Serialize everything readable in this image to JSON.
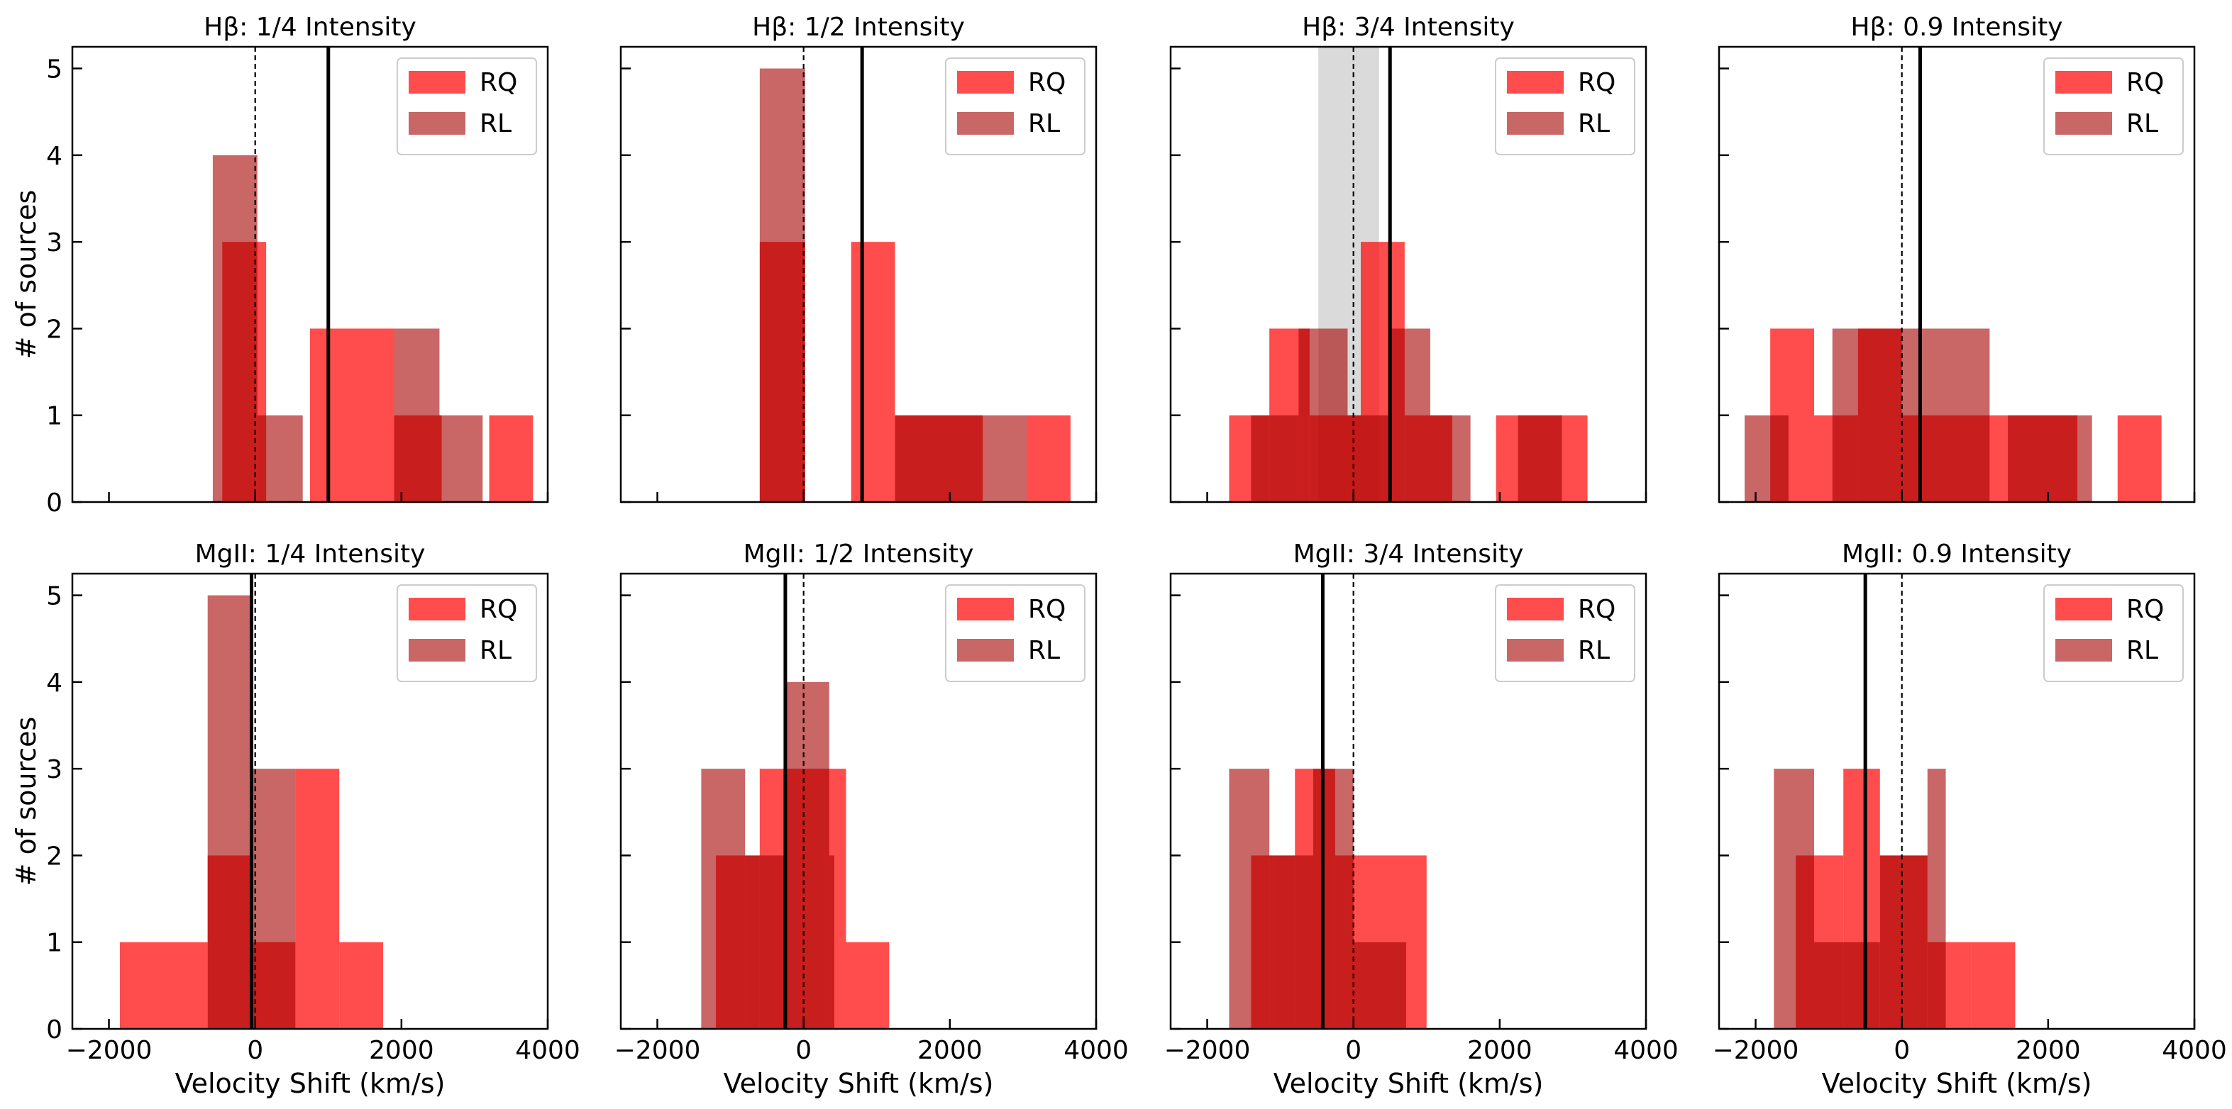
{
  "chart_data": [
    {
      "type": "histogram",
      "title": "Hβ: 1/4 Intensity",
      "xlabel": "",
      "ylabel": "#  of sources",
      "xlim": [
        -2500,
        4000
      ],
      "ylim": [
        0,
        5.25
      ],
      "xticks": [
        -2000,
        0,
        2000,
        4000
      ],
      "yticks": [
        0,
        1,
        2,
        3,
        4,
        5
      ],
      "legend": {
        "position": "top-right",
        "entries": [
          "RQ",
          "RL"
        ]
      },
      "series": [
        {
          "name": "RQ",
          "color": "#ff0000",
          "bars": [
            [
              -450,
              150,
              3
            ],
            [
              150,
              750,
              0
            ],
            [
              750,
              1900,
              2
            ],
            [
              1900,
              2550,
              1
            ],
            [
              3200,
              3800,
              1
            ]
          ]
        },
        {
          "name": "RL",
          "color": "#a50000",
          "bars": [
            [
              -580,
              30,
              4
            ],
            [
              30,
              650,
              1
            ],
            [
              1900,
              2520,
              2
            ],
            [
              2520,
              3110,
              1
            ]
          ]
        }
      ],
      "vlines": [
        {
          "x": 0,
          "style": "dashed"
        },
        {
          "x": 1000,
          "style": "solid"
        }
      ]
    },
    {
      "type": "histogram",
      "title": "Hβ: 1/2 Intensity",
      "xlabel": "",
      "ylabel": "",
      "xlim": [
        -2500,
        4000
      ],
      "ylim": [
        0,
        5.25
      ],
      "xticks": [
        -2000,
        0,
        2000,
        4000
      ],
      "yticks": [
        0,
        1,
        2,
        3,
        4,
        5
      ],
      "legend": {
        "position": "top-right",
        "entries": [
          "RQ",
          "RL"
        ]
      },
      "series": [
        {
          "name": "RQ",
          "color": "#ff0000",
          "bars": [
            [
              -600,
              20,
              3
            ],
            [
              650,
              1250,
              3
            ],
            [
              1250,
              2450,
              1
            ],
            [
              3050,
              3650,
              1
            ]
          ]
        },
        {
          "name": "RL",
          "color": "#a50000",
          "bars": [
            [
              -600,
              20,
              5
            ],
            [
              1250,
              2450,
              1
            ],
            [
              2450,
              3050,
              1
            ]
          ]
        }
      ],
      "vlines": [
        {
          "x": 0,
          "style": "dashed"
        },
        {
          "x": 800,
          "style": "solid"
        }
      ]
    },
    {
      "type": "histogram",
      "title": "Hβ: 3/4 Intensity",
      "xlabel": "",
      "ylabel": "",
      "xlim": [
        -2500,
        4000
      ],
      "ylim": [
        0,
        5.25
      ],
      "xticks": [
        -2000,
        0,
        2000,
        4000
      ],
      "yticks": [
        0,
        1,
        2,
        3,
        4,
        5
      ],
      "legend": {
        "position": "top-right",
        "entries": [
          "RQ",
          "RL"
        ]
      },
      "shaded_region": [
        -480,
        350
      ],
      "series": [
        {
          "name": "RQ",
          "color": "#ff0000",
          "bars": [
            [
              -1700,
              -1150,
              1
            ],
            [
              -1150,
              -600,
              2
            ],
            [
              -600,
              100,
              1
            ],
            [
              100,
              700,
              3
            ],
            [
              700,
              1350,
              1
            ],
            [
              1950,
              3200,
              1
            ]
          ]
        },
        {
          "name": "RL",
          "color": "#a50000",
          "bars": [
            [
              -1400,
              -750,
              1
            ],
            [
              -750,
              -80,
              2
            ],
            [
              -80,
              500,
              1
            ],
            [
              500,
              1050,
              2
            ],
            [
              1050,
              1600,
              1
            ],
            [
              2250,
              2850,
              1
            ]
          ]
        }
      ],
      "vlines": [
        {
          "x": 0,
          "style": "dashed"
        },
        {
          "x": 500,
          "style": "solid"
        }
      ]
    },
    {
      "type": "histogram",
      "title": "Hβ: 0.9 Intensity",
      "xlabel": "",
      "ylabel": "",
      "xlim": [
        -2500,
        4000
      ],
      "ylim": [
        0,
        5.25
      ],
      "xticks": [
        -2000,
        0,
        2000,
        4000
      ],
      "yticks": [
        0,
        1,
        2,
        3,
        4,
        5
      ],
      "legend": {
        "position": "top-right",
        "entries": [
          "RQ",
          "RL"
        ]
      },
      "series": [
        {
          "name": "RQ",
          "color": "#ff0000",
          "bars": [
            [
              -1800,
              -1200,
              2
            ],
            [
              -1200,
              -600,
              1
            ],
            [
              -600,
              0,
              2
            ],
            [
              0,
              1200,
              1
            ],
            [
              1200,
              2400,
              1
            ],
            [
              2950,
              3550,
              1
            ]
          ]
        },
        {
          "name": "RL",
          "color": "#a50000",
          "bars": [
            [
              -2150,
              -1550,
              1
            ],
            [
              -950,
              1200,
              2
            ],
            [
              1450,
              2600,
              1
            ]
          ]
        }
      ],
      "vlines": [
        {
          "x": 0,
          "style": "dashed"
        },
        {
          "x": 250,
          "style": "solid"
        }
      ]
    },
    {
      "type": "histogram",
      "title": "MgII: 1/4 Intensity",
      "xlabel": "Velocity Shift (km/s)",
      "ylabel": "#  of sources",
      "xlim": [
        -2500,
        4000
      ],
      "ylim": [
        0,
        5.25
      ],
      "xticks": [
        -2000,
        0,
        2000,
        4000
      ],
      "yticks": [
        0,
        1,
        2,
        3,
        4,
        5
      ],
      "legend": {
        "position": "top-right",
        "entries": [
          "RQ",
          "RL"
        ]
      },
      "series": [
        {
          "name": "RQ",
          "color": "#ff0000",
          "bars": [
            [
              -1850,
              -650,
              1
            ],
            [
              -650,
              -50,
              2
            ],
            [
              -50,
              550,
              1
            ],
            [
              550,
              1150,
              3
            ],
            [
              1150,
              1750,
              1
            ]
          ]
        },
        {
          "name": "RL",
          "color": "#a50000",
          "bars": [
            [
              -650,
              -50,
              5
            ],
            [
              -50,
              550,
              3
            ]
          ]
        }
      ],
      "vlines": [
        {
          "x": 0,
          "style": "dashed"
        },
        {
          "x": -50,
          "style": "solid"
        }
      ]
    },
    {
      "type": "histogram",
      "title": "MgII: 1/2 Intensity",
      "xlabel": "Velocity Shift (km/s)",
      "ylabel": "",
      "xlim": [
        -2500,
        4000
      ],
      "ylim": [
        0,
        5.25
      ],
      "xticks": [
        -2000,
        0,
        2000,
        4000
      ],
      "yticks": [
        0,
        1,
        2,
        3,
        4,
        5
      ],
      "legend": {
        "position": "top-right",
        "entries": [
          "RQ",
          "RL"
        ]
      },
      "series": [
        {
          "name": "RQ",
          "color": "#ff0000",
          "bars": [
            [
              -1200,
              -600,
              2
            ],
            [
              -600,
              580,
              3
            ],
            [
              580,
              1170,
              1
            ]
          ]
        },
        {
          "name": "RL",
          "color": "#a50000",
          "bars": [
            [
              -1400,
              -800,
              3
            ],
            [
              -800,
              -250,
              2
            ],
            [
              -250,
              350,
              4
            ],
            [
              350,
              420,
              2
            ]
          ]
        }
      ],
      "vlines": [
        {
          "x": 0,
          "style": "dashed"
        },
        {
          "x": -250,
          "style": "solid"
        }
      ]
    },
    {
      "type": "histogram",
      "title": "MgII: 3/4 Intensity",
      "xlabel": "Velocity Shift (km/s)",
      "ylabel": "",
      "xlim": [
        -2500,
        4000
      ],
      "ylim": [
        0,
        5.25
      ],
      "xticks": [
        -2000,
        0,
        2000,
        4000
      ],
      "yticks": [
        0,
        1,
        2,
        3,
        4,
        5
      ],
      "legend": {
        "position": "top-right",
        "entries": [
          "RQ",
          "RL"
        ]
      },
      "series": [
        {
          "name": "RQ",
          "color": "#ff0000",
          "bars": [
            [
              -1400,
              -1100,
              2
            ],
            [
              -1100,
              -800,
              2
            ],
            [
              -800,
              -250,
              3
            ],
            [
              -250,
              1000,
              2
            ]
          ]
        },
        {
          "name": "RL",
          "color": "#a50000",
          "bars": [
            [
              -1700,
              -1150,
              3
            ],
            [
              -1150,
              -550,
              2
            ],
            [
              -550,
              0,
              3
            ],
            [
              0,
              720,
              1
            ]
          ]
        }
      ],
      "vlines": [
        {
          "x": 0,
          "style": "dashed"
        },
        {
          "x": -420,
          "style": "solid"
        }
      ]
    },
    {
      "type": "histogram",
      "title": "MgII: 0.9 Intensity",
      "xlabel": "Velocity Shift (km/s)",
      "ylabel": "",
      "xlim": [
        -2500,
        4000
      ],
      "ylim": [
        0,
        5.25
      ],
      "xticks": [
        -2000,
        0,
        2000,
        4000
      ],
      "yticks": [
        0,
        1,
        2,
        3,
        4,
        5
      ],
      "legend": {
        "position": "top-right",
        "entries": [
          "RQ",
          "RL"
        ]
      },
      "series": [
        {
          "name": "RQ",
          "color": "#ff0000",
          "bars": [
            [
              -1450,
              -800,
              2
            ],
            [
              -800,
              -300,
              3
            ],
            [
              -300,
              350,
              2
            ],
            [
              350,
              950,
              1
            ],
            [
              950,
              1550,
              1
            ]
          ]
        },
        {
          "name": "RL",
          "color": "#a50000",
          "bars": [
            [
              -1750,
              -1200,
              3
            ],
            [
              -1200,
              -300,
              1
            ],
            [
              -300,
              350,
              2
            ],
            [
              350,
              600,
              3
            ]
          ]
        }
      ],
      "vlines": [
        {
          "x": 0,
          "style": "dashed"
        },
        {
          "x": -500,
          "style": "solid"
        }
      ]
    }
  ]
}
